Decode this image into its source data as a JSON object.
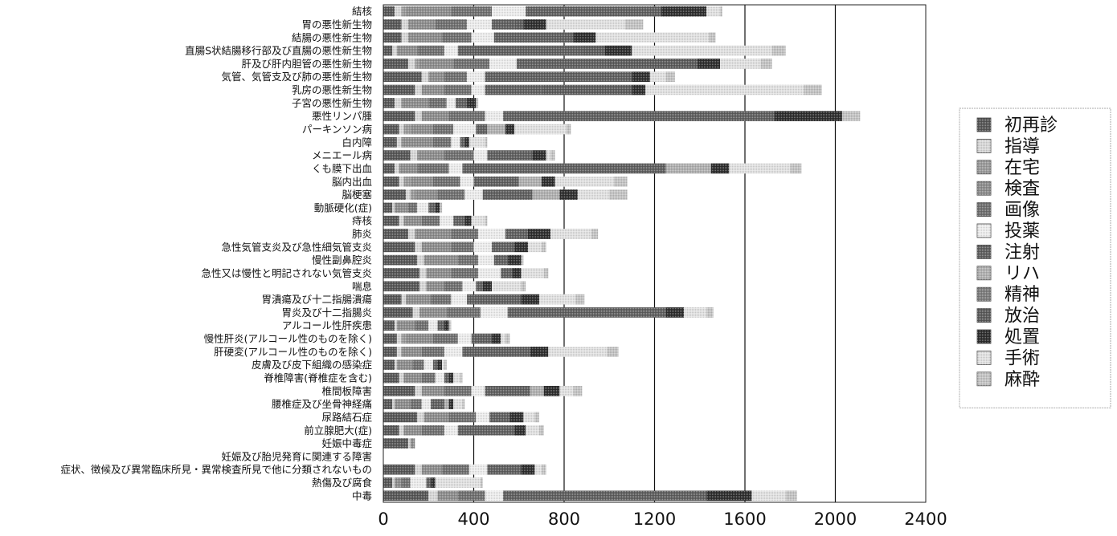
{
  "chart_data": {
    "type": "bar",
    "orientation": "horizontal",
    "stacked": true,
    "title": "",
    "xlabel": "",
    "ylabel": "",
    "xlim": [
      0,
      2400
    ],
    "xticks": [
      0,
      400,
      800,
      1200,
      1600,
      2000,
      2400
    ],
    "gridlines": "vertical",
    "legend_position": "right",
    "categories": [
      "結核",
      "胃の悪性新生物",
      "結腸の悪性新生物",
      "直腸S状結腸移行部及び直腸の悪性新生物",
      "肝及び肝内胆管の悪性新生物",
      "気管、気管支及び肺の悪性新生物",
      "乳房の悪性新生物",
      "子宮の悪性新生物",
      "悪性リンパ腫",
      "パーキンソン病",
      "白内障",
      "メニエール病",
      "くも膜下出血",
      "脳内出血",
      "脳梗塞",
      "動脈硬化(症)",
      "痔核",
      "肺炎",
      "急性気管支炎及び急性細気管支炎",
      "慢性副鼻腔炎",
      "急性又は慢性と明記されない気管支炎",
      "喘息",
      "胃潰瘍及び十二指腸潰瘍",
      "胃炎及び十二指腸炎",
      "アルコール性肝疾患",
      "慢性肝炎(アルコール性のものを除く)",
      "肝硬変(アルコール性のものを除く)",
      "皮膚及び皮下組織の感染症",
      "脊椎障害(脊椎症を含む)",
      "椎間板障害",
      "腰椎症及び坐骨神経痛",
      "尿路結石症",
      "前立腺肥大(症)",
      "妊娠中毒症",
      "妊娠及び胎児発育に関連する障害",
      "症状、徴候及び異常臨床所見・異常検査所見で他に分類されないもの",
      "熱傷及び腐食",
      "中毒"
    ],
    "series": [
      {
        "name": "初再診",
        "color": "#555555",
        "values": [
          50,
          80,
          80,
          40,
          110,
          170,
          140,
          50,
          140,
          70,
          60,
          120,
          50,
          70,
          100,
          40,
          70,
          110,
          140,
          150,
          160,
          160,
          80,
          130,
          50,
          60,
          60,
          50,
          70,
          140,
          40,
          150,
          70,
          110,
          0,
          140,
          40,
          200
        ]
      },
      {
        "name": "指導",
        "color": "#d8d8d8",
        "values": [
          30,
          30,
          30,
          20,
          30,
          30,
          30,
          30,
          30,
          20,
          20,
          30,
          20,
          20,
          20,
          10,
          20,
          30,
          30,
          30,
          30,
          30,
          20,
          30,
          10,
          20,
          20,
          10,
          20,
          30,
          10,
          30,
          20,
          10,
          0,
          30,
          10,
          40
        ]
      },
      {
        "name": "在宅",
        "color": "#9a9a9a",
        "values": [
          20,
          0,
          0,
          0,
          20,
          0,
          0,
          0,
          0,
          30,
          0,
          0,
          0,
          30,
          20,
          0,
          0,
          0,
          0,
          0,
          0,
          0,
          0,
          0,
          0,
          20,
          0,
          0,
          0,
          0,
          0,
          0,
          0,
          0,
          0,
          0,
          0,
          0
        ]
      },
      {
        "name": "検査",
        "color": "#8c8c8c",
        "values": [
          200,
          120,
          150,
          90,
          150,
          70,
          100,
          120,
          120,
          100,
          140,
          120,
          80,
          100,
          100,
          60,
          80,
          160,
          130,
          150,
          110,
          80,
          110,
          120,
          80,
          120,
          90,
          70,
          80,
          100,
          70,
          110,
          80,
          20,
          0,
          90,
          30,
          90
        ]
      },
      {
        "name": "画像",
        "color": "#6e6e6e",
        "values": [
          180,
          140,
          130,
          120,
          160,
          100,
          120,
          80,
          160,
          90,
          80,
          130,
          140,
          120,
          120,
          40,
          80,
          120,
          100,
          90,
          120,
          80,
          90,
          150,
          60,
          110,
          100,
          50,
          60,
          120,
          50,
          120,
          100,
          0,
          0,
          120,
          40,
          120
        ]
      },
      {
        "name": "投薬",
        "color": "#eeeeee",
        "values": [
          150,
          110,
          100,
          60,
          120,
          80,
          60,
          40,
          80,
          100,
          40,
          60,
          60,
          60,
          80,
          50,
          60,
          120,
          80,
          70,
          100,
          60,
          70,
          120,
          40,
          60,
          80,
          40,
          40,
          60,
          40,
          60,
          60,
          0,
          0,
          80,
          70,
          80
        ]
      },
      {
        "name": "注射",
        "color": "#5e5e5e",
        "values": [
          600,
          100,
          350,
          550,
          400,
          650,
          250,
          50,
          1200,
          50,
          20,
          200,
          900,
          200,
          220,
          30,
          50,
          100,
          100,
          60,
          50,
          30,
          240,
          700,
          30,
          90,
          300,
          20,
          20,
          200,
          60,
          90,
          250,
          0,
          0,
          150,
          20,
          900
        ]
      },
      {
        "name": "リハ",
        "color": "#b0b0b0",
        "values": [
          0,
          0,
          0,
          0,
          0,
          0,
          0,
          0,
          0,
          80,
          0,
          0,
          200,
          100,
          120,
          0,
          0,
          0,
          0,
          0,
          0,
          0,
          0,
          0,
          0,
          0,
          0,
          0,
          0,
          60,
          20,
          0,
          0,
          0,
          0,
          0,
          0,
          0
        ]
      },
      {
        "name": "精神",
        "color": "#7c7c7c",
        "values": [
          0,
          0,
          0,
          0,
          0,
          0,
          0,
          0,
          0,
          0,
          0,
          0,
          0,
          0,
          0,
          0,
          0,
          0,
          0,
          0,
          0,
          0,
          0,
          0,
          0,
          0,
          0,
          0,
          0,
          0,
          0,
          0,
          0,
          0,
          0,
          0,
          0,
          0
        ]
      },
      {
        "name": "放治",
        "color": "#5a5a5a",
        "values": [
          0,
          40,
          0,
          100,
          400,
          0,
          400,
          0,
          0,
          0,
          0,
          0,
          0,
          0,
          0,
          0,
          0,
          0,
          0,
          0,
          0,
          0,
          0,
          0,
          0,
          0,
          0,
          0,
          0,
          0,
          0,
          0,
          0,
          0,
          0,
          0,
          0,
          0
        ]
      },
      {
        "name": "処置",
        "color": "#2c2c2c",
        "values": [
          200,
          100,
          100,
          120,
          100,
          80,
          60,
          40,
          300,
          40,
          20,
          60,
          80,
          60,
          80,
          20,
          30,
          100,
          60,
          60,
          40,
          40,
          80,
          80,
          20,
          40,
          80,
          20,
          20,
          70,
          20,
          60,
          50,
          0,
          0,
          60,
          20,
          200
        ]
      },
      {
        "name": "手術",
        "color": "#e2e2e2",
        "values": [
          60,
          350,
          500,
          620,
          180,
          70,
          700,
          0,
          0,
          230,
          70,
          20,
          270,
          260,
          140,
          0,
          60,
          180,
          60,
          0,
          100,
          130,
          160,
          100,
          0,
          20,
          260,
          10,
          30,
          60,
          40,
          50,
          60,
          0,
          0,
          30,
          200,
          150
        ]
      },
      {
        "name": "麻酔",
        "color": "#c4c4c4",
        "values": [
          10,
          80,
          30,
          60,
          50,
          40,
          80,
          10,
          80,
          20,
          10,
          20,
          50,
          60,
          80,
          10,
          10,
          30,
          20,
          10,
          20,
          20,
          40,
          30,
          10,
          20,
          50,
          10,
          10,
          40,
          10,
          20,
          20,
          0,
          0,
          20,
          10,
          50
        ]
      }
    ]
  }
}
